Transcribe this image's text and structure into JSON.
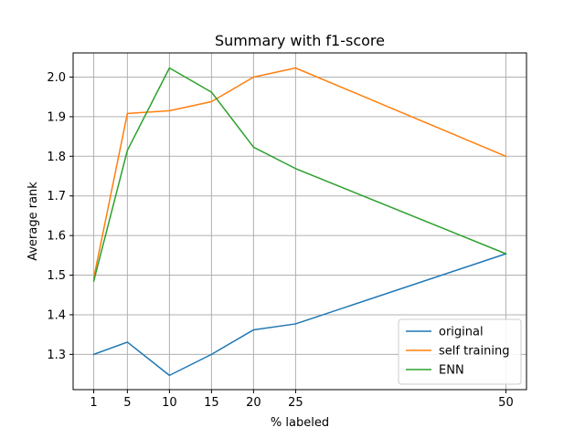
{
  "chart_data": {
    "type": "line",
    "title": "Summary with f1-score",
    "xlabel": "% labeled",
    "ylabel": "Average rank",
    "x": [
      1,
      5,
      10,
      15,
      20,
      25,
      50
    ],
    "xticks": [
      1,
      5,
      10,
      15,
      20,
      25,
      50
    ],
    "yticks": [
      1.3,
      1.4,
      1.5,
      1.6,
      1.7,
      1.8,
      1.9,
      2.0
    ],
    "ytick_labels": [
      "1.3",
      "1.4",
      "1.5",
      "1.6",
      "1.7",
      "1.8",
      "1.9",
      "2.0"
    ],
    "xlim": [
      -1.45,
      52.45
    ],
    "ylim": [
      1.211,
      2.061
    ],
    "grid": true,
    "legend_position": "lower-right",
    "series": [
      {
        "name": "original",
        "color": "#1f77b4",
        "values": [
          1.3,
          1.331,
          1.247,
          1.3,
          1.362,
          1.377,
          1.554
        ]
      },
      {
        "name": "self training",
        "color": "#ff7f0e",
        "values": [
          1.493,
          1.908,
          1.915,
          1.938,
          2.0,
          2.023,
          1.8
        ]
      },
      {
        "name": "ENN",
        "color": "#2ca02c",
        "values": [
          1.485,
          1.815,
          2.023,
          1.962,
          1.823,
          1.769,
          1.554
        ]
      }
    ]
  }
}
